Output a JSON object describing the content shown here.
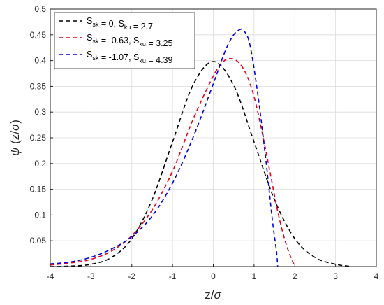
{
  "chart_data": {
    "type": "line",
    "xlabel_main": "z/",
    "xlabel_symbol": "σ",
    "ylabel_prefix": "ψ",
    "ylabel_main": " (z/",
    "ylabel_symbol": "σ",
    "ylabel_suffix": ")",
    "xlim": [
      -4,
      4
    ],
    "ylim": [
      0,
      0.5
    ],
    "xticks": [
      -4,
      -3,
      -2,
      -1,
      0,
      1,
      2,
      3,
      4
    ],
    "xtick_labels": [
      "-4",
      "-3",
      "-2",
      "-1",
      "0",
      "1",
      "2",
      "3",
      "4"
    ],
    "yticks": [
      0.05,
      0.1,
      0.15,
      0.2,
      0.25,
      0.3,
      0.35,
      0.4,
      0.45,
      0.5
    ],
    "ytick_labels": [
      "0.05",
      "0.1",
      "0.15",
      "0.2",
      "0.25",
      "0.3",
      "0.35",
      "0.4",
      "0.45",
      "0.5"
    ],
    "grid": true,
    "legend_position": "top-left",
    "series": [
      {
        "legend": {
          "a": "S",
          "a_sub": "sk",
          "b": "= 0, S",
          "b_sub": "ku",
          "c": "= 2.7"
        },
        "color": "#000000",
        "x": [
          -4.0,
          -3.5,
          -3.0,
          -2.5,
          -2.0,
          -1.5,
          -1.0,
          -0.5,
          0.0,
          0.5,
          1.0,
          1.5,
          2.0,
          2.5,
          3.0,
          3.4
        ],
        "y": [
          0.0,
          0.0009,
          0.0044,
          0.0175,
          0.054,
          0.13,
          0.242,
          0.352,
          0.398,
          0.352,
          0.242,
          0.13,
          0.054,
          0.0175,
          0.0044,
          0.0
        ]
      },
      {
        "legend": {
          "a": "S",
          "a_sub": "sk",
          "b": "= -0.63, S",
          "b_sub": "ku",
          "c": "= 3.25"
        },
        "color": "#e8001c",
        "x": [
          -4.0,
          -3.5,
          -3.0,
          -2.5,
          -2.0,
          -1.5,
          -1.0,
          -0.5,
          0.0,
          0.25,
          0.4,
          0.6,
          0.8,
          1.0,
          1.2,
          1.4,
          1.6,
          1.8,
          2.0
        ],
        "y": [
          0.003,
          0.007,
          0.014,
          0.03,
          0.06,
          0.11,
          0.185,
          0.285,
          0.37,
          0.398,
          0.404,
          0.398,
          0.375,
          0.33,
          0.26,
          0.18,
          0.1,
          0.04,
          0.0
        ]
      },
      {
        "legend": {
          "a": "S",
          "a_sub": "sk",
          "b": "= -1.07, S",
          "b_sub": "ku",
          "c": "= 4.39"
        },
        "color": "#0000e0",
        "x": [
          -4.0,
          -3.5,
          -3.0,
          -2.5,
          -2.0,
          -1.5,
          -1.0,
          -0.5,
          0.0,
          0.3,
          0.5,
          0.65,
          0.75,
          0.9,
          1.1,
          1.3,
          1.45,
          1.55,
          1.58
        ],
        "y": [
          0.005,
          0.009,
          0.018,
          0.034,
          0.058,
          0.098,
          0.162,
          0.25,
          0.355,
          0.42,
          0.45,
          0.46,
          0.458,
          0.43,
          0.33,
          0.2,
          0.09,
          0.03,
          0.0
        ]
      }
    ]
  }
}
